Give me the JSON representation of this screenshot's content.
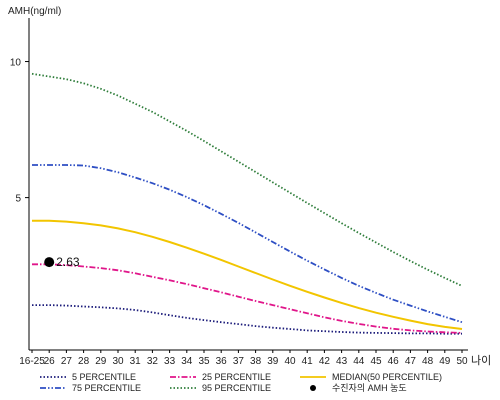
{
  "chart_data": {
    "type": "line",
    "ylabel": "AMH(ng/ml)",
    "xlabel": "나이",
    "x_tick_labels": [
      "16-25",
      "26",
      "27",
      "28",
      "29",
      "30",
      "31",
      "32",
      "33",
      "34",
      "35",
      "36",
      "37",
      "38",
      "39",
      "40",
      "41",
      "42",
      "43",
      "44",
      "45",
      "46",
      "47",
      "48",
      "49",
      "50"
    ],
    "y_ticks": [
      5,
      10
    ],
    "ylim": [
      -0.6,
      11.6
    ],
    "grid": false,
    "legend_position": "bottom",
    "series": [
      {
        "name": "5 PERCENTILE",
        "color": "#1b1b7a",
        "style": "dotted",
        "values": [
          1.05,
          1.05,
          1.03,
          1.0,
          0.97,
          0.93,
          0.87,
          0.78,
          0.68,
          0.58,
          0.5,
          0.42,
          0.35,
          0.28,
          0.22,
          0.17,
          0.12,
          0.09,
          0.06,
          0.04,
          0.03,
          0.02,
          0.01,
          0.01,
          0.0,
          0.0
        ]
      },
      {
        "name": "25 PERCENTILE",
        "color": "#e0168a",
        "style": "dashdot",
        "values": [
          2.55,
          2.55,
          2.52,
          2.47,
          2.41,
          2.33,
          2.22,
          2.09,
          1.96,
          1.82,
          1.67,
          1.52,
          1.36,
          1.2,
          1.05,
          0.9,
          0.75,
          0.6,
          0.47,
          0.36,
          0.26,
          0.18,
          0.12,
          0.08,
          0.05,
          0.03
        ]
      },
      {
        "name": "MEDIAN(50 PERCENTILE)",
        "color": "#f2c500",
        "style": "solid",
        "values": [
          4.15,
          4.15,
          4.12,
          4.06,
          3.98,
          3.87,
          3.73,
          3.56,
          3.37,
          3.16,
          2.94,
          2.71,
          2.47,
          2.23,
          1.99,
          1.76,
          1.54,
          1.33,
          1.13,
          0.94,
          0.77,
          0.62,
          0.48,
          0.35,
          0.25,
          0.17
        ]
      },
      {
        "name": "75 PERCENTILE",
        "color": "#2e4fc4",
        "style": "dashdotdot",
        "values": [
          6.2,
          6.2,
          6.2,
          6.18,
          6.08,
          5.93,
          5.74,
          5.53,
          5.29,
          5.02,
          4.72,
          4.4,
          4.07,
          3.72,
          3.37,
          3.02,
          2.68,
          2.36,
          2.05,
          1.76,
          1.5,
          1.25,
          1.03,
          0.82,
          0.62,
          0.42
        ]
      },
      {
        "name": "95 PERCENTILE",
        "color": "#2e7d3a",
        "style": "dotted",
        "values": [
          9.55,
          9.45,
          9.35,
          9.2,
          9.0,
          8.75,
          8.45,
          8.15,
          7.8,
          7.45,
          7.08,
          6.7,
          6.32,
          5.94,
          5.56,
          5.18,
          4.8,
          4.43,
          4.06,
          3.7,
          3.35,
          3.0,
          2.67,
          2.35,
          2.05,
          1.75
        ]
      }
    ],
    "marker": {
      "label": "수진자의 AMH 농도",
      "x_tick": "26",
      "value": 2.63,
      "value_label": "2.63",
      "color": "#000000"
    }
  }
}
